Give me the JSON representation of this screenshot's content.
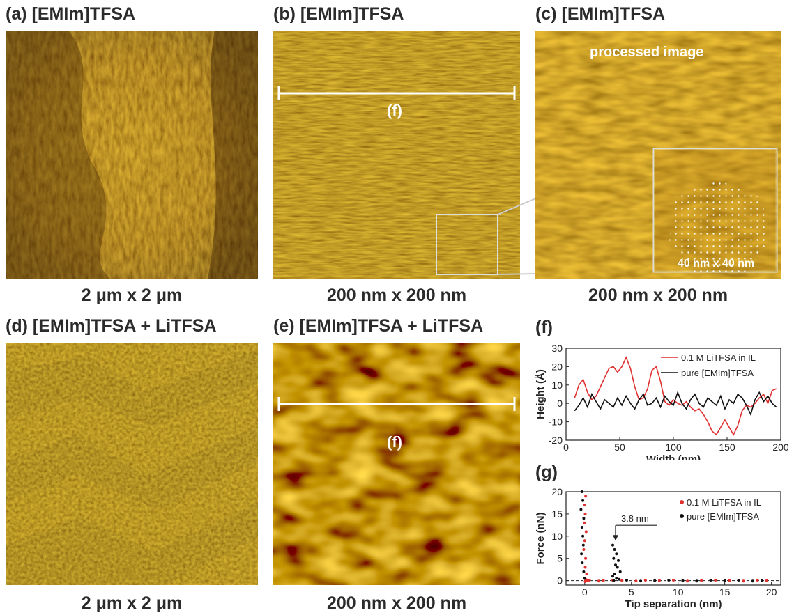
{
  "panels": {
    "a": {
      "title": "(a) [EMIm]TFSA",
      "caption": "2 μm x 2 μm"
    },
    "b": {
      "title": "(b) [EMIm]TFSA",
      "caption": "200 nm x 200 nm",
      "line_label": "(f)"
    },
    "c": {
      "title": "(c) [EMIm]TFSA",
      "caption": "200 nm x 200 nm",
      "overlay": "processed image",
      "inset_label": "40 nm x 40 nm"
    },
    "d": {
      "title": "(d) [EMIm]TFSA + LiTFSA",
      "caption": "2 μm x 2 μm"
    },
    "e": {
      "title": "(e) [EMIm]TFSA + LiTFSA",
      "caption": "200 nm x 200 nm",
      "line_label": "(f)"
    },
    "f": {
      "title": "(f)"
    },
    "g": {
      "title": "(g)",
      "annotation": "3.8 nm"
    }
  },
  "colors": {
    "afm_dark": "#3a1a00",
    "afm_mid": "#a86a08",
    "afm_bright": "#f0e020",
    "red_series": "#e03030",
    "black_series": "#111111"
  },
  "chart_data": [
    {
      "type": "line",
      "panel": "(f)",
      "xlabel": "Width (nm)",
      "ylabel": "Height (Å)",
      "xlim": [
        0,
        200
      ],
      "ylim": [
        -20,
        30
      ],
      "xticks": [
        0,
        50,
        100,
        150,
        200
      ],
      "yticks": [
        -20,
        -10,
        0,
        10,
        20,
        30
      ],
      "legend_position": "top-right",
      "series": [
        {
          "name": "0.1 M LiTFSA in IL",
          "color": "#e03030",
          "x": [
            8,
            12,
            16,
            20,
            24,
            28,
            32,
            36,
            40,
            44,
            48,
            52,
            56,
            60,
            64,
            68,
            72,
            76,
            80,
            84,
            88,
            92,
            96,
            100,
            104,
            108,
            112,
            116,
            120,
            124,
            128,
            132,
            136,
            140,
            144,
            148,
            152,
            156,
            160,
            164,
            168,
            172,
            176,
            180,
            184,
            188,
            192,
            196
          ],
          "y": [
            3,
            10,
            13,
            6,
            2,
            4,
            9,
            14,
            19,
            20,
            17,
            20,
            25,
            19,
            9,
            2,
            3,
            8,
            18,
            20,
            12,
            1,
            -1,
            2,
            0,
            -1,
            1,
            -2,
            -4,
            -3,
            -6,
            -10,
            -15,
            -17,
            -13,
            -9,
            -13,
            -17,
            -12,
            -4,
            -1,
            -2,
            0,
            3,
            5,
            0,
            7,
            8
          ]
        },
        {
          "name": "pure [EMIm]TFSA",
          "color": "#111111",
          "x": [
            8,
            12,
            16,
            20,
            24,
            28,
            32,
            36,
            40,
            44,
            48,
            52,
            56,
            60,
            64,
            68,
            72,
            76,
            80,
            84,
            88,
            92,
            96,
            100,
            104,
            108,
            112,
            116,
            120,
            124,
            128,
            132,
            136,
            140,
            144,
            148,
            152,
            156,
            160,
            164,
            168,
            172,
            176,
            180,
            184,
            188,
            192,
            196
          ],
          "y": [
            -4,
            -1,
            3,
            -2,
            5,
            1,
            -3,
            2,
            0,
            -2,
            3,
            -1,
            4,
            0,
            -3,
            2,
            5,
            -1,
            0,
            3,
            -2,
            4,
            1,
            -1,
            6,
            0,
            -3,
            2,
            5,
            0,
            -2,
            3,
            1,
            -1,
            4,
            -3,
            2,
            0,
            5,
            3,
            -1,
            -6,
            2,
            6,
            1,
            4,
            0,
            -2
          ]
        }
      ]
    },
    {
      "type": "scatter",
      "panel": "(g)",
      "xlabel": "Tip separation (nm)",
      "ylabel": "Force (nN)",
      "xlim": [
        -2,
        21
      ],
      "ylim": [
        -1,
        20
      ],
      "xticks": [
        0,
        5,
        10,
        15,
        20
      ],
      "yticks": [
        0,
        5,
        10,
        15,
        20
      ],
      "legend_position": "top-right",
      "series": [
        {
          "name": "0.1 M LiTFSA in IL",
          "color": "#e03030",
          "x": [
            0.1,
            0.0,
            0.05,
            -0.05,
            0.15,
            0.0,
            -0.1,
            0.1,
            0.05,
            0.2,
            0.0,
            0.1,
            0.15,
            0.05,
            0.3,
            0.5,
            1.5,
            2.0,
            3.0,
            4.0,
            5.5,
            6.5,
            8.0,
            9.5,
            11.0,
            12.5,
            14.0,
            15.5,
            17.0,
            18.5,
            19.5
          ],
          "y": [
            19,
            17,
            15,
            13,
            11,
            9,
            7,
            5,
            3,
            1.5,
            0.5,
            0,
            0.2,
            -0.2,
            0,
            0.1,
            -0.1,
            0,
            0.1,
            0,
            -0.1,
            0.1,
            0,
            0.1,
            -0.1,
            0,
            0.1,
            0,
            -0.1,
            0.1,
            0
          ]
        },
        {
          "name": "pure [EMIm]TFSA",
          "color": "#111111",
          "x": [
            -0.3,
            -0.2,
            -0.4,
            -0.1,
            -0.3,
            -0.2,
            -0.15,
            -0.35,
            -0.25,
            -0.1,
            0.0,
            3.0,
            3.2,
            3.4,
            3.1,
            3.6,
            3.3,
            3.5,
            3.8,
            3.2,
            3.0,
            3.4,
            3.7,
            3.1,
            4.5,
            6.0,
            7.5,
            9.0,
            10.5,
            12.0,
            13.5,
            15.0,
            16.5,
            18.0,
            19.0
          ],
          "y": [
            20,
            18,
            16,
            14,
            12,
            10,
            8,
            6,
            4,
            2,
            0.5,
            8,
            7,
            6,
            5,
            4.5,
            3.5,
            3,
            2,
            1.5,
            1,
            0.5,
            0.3,
            0,
            0.1,
            -0.1,
            0,
            0.1,
            0,
            -0.1,
            0.1,
            0,
            0.1,
            -0.1,
            0
          ]
        }
      ],
      "annotation": {
        "text": "3.8 nm",
        "arrow_x": 3.3,
        "arrow_y": 9
      }
    }
  ]
}
